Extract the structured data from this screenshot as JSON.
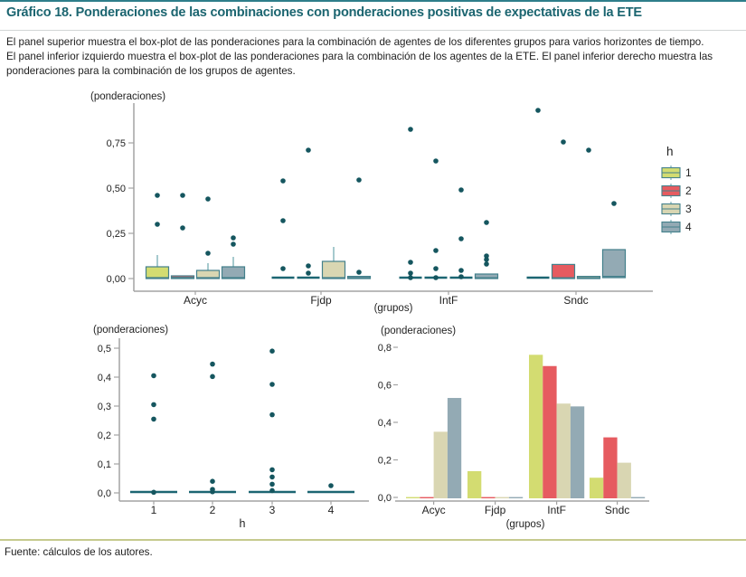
{
  "header": {
    "title": "Gráfico 18. Ponderaciones de las combinaciones con ponderaciones positivas de expectativas de la ETE",
    "description_lines": [
      "El panel superior muestra el box-plot de las ponderaciones para la combinación de agentes de los diferentes grupos para varios horizontes de tiempo.",
      "El panel inferior izquierdo muestra el box-plot de las ponderaciones para la combinación de los agentes de la ETE. El panel inferior derecho muestra las",
      "ponderaciones para la combinación de los grupos de agentes."
    ]
  },
  "footer": {
    "source": "Fuente: cálculos de los autores."
  },
  "colors": {
    "accent_teal": "#2e7e8a",
    "title_teal": "#1b6570",
    "h1": "#d3dc71",
    "h2": "#e65b60",
    "h3": "#d9d6b2",
    "h4": "#93aab4",
    "box_border": "#43808b",
    "whisker": "#8fbcc2",
    "flat_line": "#1c6672",
    "point": "#15565f",
    "axis": "#a3a3a3",
    "text": "#222222",
    "footer_line": "#c6ca8e"
  },
  "legend": {
    "title": "h",
    "items": [
      {
        "label": "1",
        "color_key": "h1"
      },
      {
        "label": "2",
        "color_key": "h2"
      },
      {
        "label": "3",
        "color_key": "h3"
      },
      {
        "label": "4",
        "color_key": "h4"
      }
    ]
  },
  "chart_data": [
    {
      "id": "top-boxplot",
      "type": "boxplot",
      "ylabel": "(ponderaciones)",
      "xlabel": "(grupos)",
      "ylim": [
        0,
        0.97
      ],
      "grid": false,
      "legend_position": "right",
      "yticks": [
        {
          "v": 0.0,
          "label": "0,00"
        },
        {
          "v": 0.25,
          "label": "0,25"
        },
        {
          "v": 0.5,
          "label": "0,50"
        },
        {
          "v": 0.75,
          "label": "0,75"
        }
      ],
      "series_names": [
        "1",
        "2",
        "3",
        "4"
      ],
      "groups": [
        {
          "label": "Acyc",
          "boxes": [
            {
              "q1": 0,
              "med": 0.005,
              "q3": 0.065,
              "hi": 0.13,
              "outliers": [
                0.3,
                0.46
              ]
            },
            {
              "q1": 0,
              "med": 0.006,
              "q3": 0.015,
              "hi": 0.015,
              "outliers": [
                0.28,
                0.46
              ]
            },
            {
              "q1": 0,
              "med": 0.005,
              "q3": 0.045,
              "hi": 0.085,
              "outliers": [
                0.14,
                0.44
              ]
            },
            {
              "q1": 0,
              "med": 0.005,
              "q3": 0.065,
              "hi": 0.12,
              "outliers": [
                0.19,
                0.225
              ]
            }
          ]
        },
        {
          "label": "Fjdp",
          "boxes": [
            {
              "flat": true,
              "outliers": [
                0.055,
                0.32,
                0.54
              ]
            },
            {
              "flat": true,
              "outliers": [
                0.03,
                0.07,
                0.71
              ]
            },
            {
              "q1": 0,
              "med": 0.005,
              "q3": 0.095,
              "hi": 0.175,
              "outliers": []
            },
            {
              "q1": 0,
              "med": 0.004,
              "q3": 0.012,
              "hi": 0.012,
              "outliers": [
                0.035,
                0.545
              ]
            }
          ]
        },
        {
          "label": "IntF",
          "boxes": [
            {
              "flat": true,
              "outliers": [
                0.005,
                0.03,
                0.09,
                0.825
              ]
            },
            {
              "flat": true,
              "outliers": [
                0.005,
                0.055,
                0.155,
                0.65
              ]
            },
            {
              "flat": true,
              "outliers": [
                0.01,
                0.045,
                0.22,
                0.49
              ]
            },
            {
              "q1": 0,
              "med": 0.004,
              "q3": 0.025,
              "hi": 0.025,
              "outliers": [
                0.08,
                0.105,
                0.125,
                0.31
              ]
            }
          ]
        },
        {
          "label": "Sndc",
          "boxes": [
            {
              "flat": true,
              "outliers": [
                0.93
              ]
            },
            {
              "q1": 0,
              "med": 0.004,
              "q3": 0.078,
              "hi": 0.078,
              "outliers": [
                0.755
              ]
            },
            {
              "q1": 0,
              "med": 0.004,
              "q3": 0.012,
              "hi": 0.012,
              "outliers": [
                0.71
              ]
            },
            {
              "q1": 0.005,
              "med": 0.012,
              "q3": 0.16,
              "hi": 0.16,
              "outliers": [
                0.415
              ]
            }
          ]
        }
      ]
    },
    {
      "id": "bottom-left-boxplot",
      "type": "boxplot",
      "ylabel": "(ponderaciones)",
      "xlabel": "h",
      "ylim": [
        0,
        0.52
      ],
      "grid": false,
      "yticks": [
        {
          "v": 0.0,
          "label": "0,0"
        },
        {
          "v": 0.1,
          "label": "0,1"
        },
        {
          "v": 0.2,
          "label": "0,2"
        },
        {
          "v": 0.3,
          "label": "0,3"
        },
        {
          "v": 0.4,
          "label": "0,4"
        },
        {
          "v": 0.5,
          "label": "0,5"
        }
      ],
      "groups": [
        {
          "label": "1",
          "line_at": 0,
          "outliers": [
            0.405,
            0.305,
            0.255,
            0.002
          ]
        },
        {
          "label": "2",
          "line_at": 0,
          "outliers": [
            0.445,
            0.402,
            0.04,
            0.012,
            0.004
          ]
        },
        {
          "label": "3",
          "line_at": 0,
          "outliers": [
            0.49,
            0.375,
            0.27,
            0.08,
            0.055,
            0.03,
            0.008
          ]
        },
        {
          "label": "4",
          "line_at": 0,
          "outliers": [
            0.025
          ]
        }
      ]
    },
    {
      "id": "bottom-right-bars",
      "type": "bar",
      "ylabel": "(ponderaciones)",
      "xlabel": "(grupos)",
      "ylim": [
        0,
        0.8
      ],
      "grid": false,
      "yticks": [
        {
          "v": 0.0,
          "label": "0,0"
        },
        {
          "v": 0.2,
          "label": "0,2"
        },
        {
          "v": 0.4,
          "label": "0,4"
        },
        {
          "v": 0.6,
          "label": "0,6"
        },
        {
          "v": 0.8,
          "label": "0,8"
        }
      ],
      "categories": [
        "Acyc",
        "Fjdp",
        "IntF",
        "Sndc"
      ],
      "series": [
        {
          "name": "1",
          "color_key": "h1",
          "values": [
            0,
            0.14,
            0.76,
            0.105
          ]
        },
        {
          "name": "2",
          "color_key": "h2",
          "values": [
            0,
            0,
            0.7,
            0.32
          ]
        },
        {
          "name": "3",
          "color_key": "h3",
          "values": [
            0.35,
            0,
            0.5,
            0.185
          ]
        },
        {
          "name": "4",
          "color_key": "h4",
          "values": [
            0.53,
            0,
            0.485,
            0
          ]
        }
      ]
    }
  ]
}
